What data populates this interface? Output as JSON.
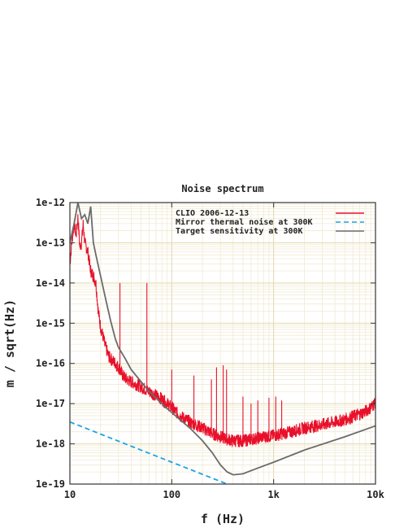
{
  "chart_data": {
    "type": "line",
    "title": "Noise spectrum",
    "xlabel": "f (Hz)",
    "ylabel": "m / sqrt(Hz)",
    "x_scale": "log",
    "y_scale": "log",
    "xlim": [
      10,
      10000
    ],
    "ylim": [
      1e-19,
      1e-12
    ],
    "x_ticks": [
      {
        "value": 10,
        "label": "10"
      },
      {
        "value": 100,
        "label": "100"
      },
      {
        "value": 1000,
        "label": "1k"
      },
      {
        "value": 10000,
        "label": "10k"
      }
    ],
    "y_ticks": [
      {
        "value": 1e-12,
        "label": "1e-12"
      },
      {
        "value": 1e-13,
        "label": "1e-13"
      },
      {
        "value": 1e-14,
        "label": "1e-14"
      },
      {
        "value": 1e-15,
        "label": "1e-15"
      },
      {
        "value": 1e-16,
        "label": "1e-16"
      },
      {
        "value": 1e-17,
        "label": "1e-17"
      },
      {
        "value": 1e-18,
        "label": "1e-18"
      },
      {
        "value": 1e-19,
        "label": "1e-19"
      }
    ],
    "grid": true,
    "legend_position": "top-right",
    "series": [
      {
        "name": "CLIO 2006-12-13",
        "color": "#e8102a",
        "style": "solid",
        "points": [
          [
            10,
            3e-14
          ],
          [
            10.5,
            1.2e-13
          ],
          [
            11,
            3e-13
          ],
          [
            11.5,
            1.5e-13
          ],
          [
            12,
            4.5e-13
          ],
          [
            12.5,
            8e-14
          ],
          [
            13,
            1e-13
          ],
          [
            13.5,
            3e-13
          ],
          [
            14,
            1e-13
          ],
          [
            15,
            6e-14
          ],
          [
            16,
            2e-14
          ],
          [
            17,
            1.5e-14
          ],
          [
            18,
            1e-14
          ],
          [
            19,
            2e-15
          ],
          [
            20,
            8e-16
          ],
          [
            21,
            5e-16
          ],
          [
            22,
            3e-16
          ],
          [
            24,
            1.5e-16
          ],
          [
            26,
            1.2e-16
          ],
          [
            28,
            1e-16
          ],
          [
            30,
            8e-17
          ],
          [
            33,
            5e-17
          ],
          [
            36,
            4e-17
          ],
          [
            40,
            3.5e-17
          ],
          [
            45,
            3e-17
          ],
          [
            50,
            2.6e-17
          ],
          [
            60,
            2e-17
          ],
          [
            70,
            1.6e-17
          ],
          [
            80,
            1.3e-17
          ],
          [
            100,
            8e-18
          ],
          [
            120,
            5e-18
          ],
          [
            150,
            3.5e-18
          ],
          [
            200,
            2.5e-18
          ],
          [
            250,
            1.8e-18
          ],
          [
            300,
            1.5e-18
          ],
          [
            350,
            1.3e-18
          ],
          [
            400,
            1.2e-18
          ],
          [
            500,
            1.2e-18
          ],
          [
            600,
            1.3e-18
          ],
          [
            700,
            1.4e-18
          ],
          [
            800,
            1.5e-18
          ],
          [
            1000,
            1.6e-18
          ],
          [
            1500,
            2e-18
          ],
          [
            2000,
            2.5e-18
          ],
          [
            3000,
            3e-18
          ],
          [
            4000,
            3.5e-18
          ],
          [
            5000,
            4e-18
          ],
          [
            6000,
            4.8e-18
          ],
          [
            7000,
            5.5e-18
          ],
          [
            8000,
            6.5e-18
          ],
          [
            9000,
            8e-18
          ],
          [
            10000,
            1.1e-17
          ]
        ],
        "peaks": [
          [
            31,
            1e-14
          ],
          [
            57,
            1e-14
          ],
          [
            100,
            7e-17
          ],
          [
            165,
            5e-17
          ],
          [
            245,
            4e-17
          ],
          [
            275,
            8e-17
          ],
          [
            320,
            9e-17
          ],
          [
            345,
            7e-17
          ],
          [
            500,
            1.5e-17
          ],
          [
            600,
            1e-17
          ],
          [
            700,
            1.2e-17
          ],
          [
            900,
            1.4e-17
          ],
          [
            1050,
            1.5e-17
          ],
          [
            1200,
            1.2e-17
          ]
        ]
      },
      {
        "name": "Mirror thermal noise at 300K",
        "color": "#1aa3e6",
        "style": "dashed",
        "points": [
          [
            10,
            3.5e-18
          ],
          [
            100,
            3.5e-19
          ],
          [
            400,
            8.75e-20
          ]
        ]
      },
      {
        "name": "Target sensitivity at 300K",
        "color": "#6b6b6b",
        "style": "solid",
        "points": [
          [
            10,
            1e-13
          ],
          [
            11,
            3e-13
          ],
          [
            12,
            1e-12
          ],
          [
            13,
            4e-13
          ],
          [
            14,
            5e-13
          ],
          [
            15,
            3e-13
          ],
          [
            16,
            8e-13
          ],
          [
            17,
            1e-13
          ],
          [
            18,
            5e-14
          ],
          [
            20,
            1.5e-14
          ],
          [
            22,
            5e-15
          ],
          [
            25,
            1.2e-15
          ],
          [
            28,
            4e-16
          ],
          [
            30,
            2.5e-16
          ],
          [
            35,
            1.3e-16
          ],
          [
            40,
            7e-17
          ],
          [
            50,
            3.5e-17
          ],
          [
            60,
            2e-17
          ],
          [
            80,
            1e-17
          ],
          [
            100,
            6e-18
          ],
          [
            150,
            2.5e-18
          ],
          [
            200,
            1.2e-18
          ],
          [
            250,
            6e-19
          ],
          [
            300,
            3e-19
          ],
          [
            350,
            2e-19
          ],
          [
            400,
            1.7e-19
          ],
          [
            500,
            1.8e-19
          ],
          [
            700,
            2.5e-19
          ],
          [
            1000,
            3.5e-19
          ],
          [
            2000,
            7e-19
          ],
          [
            5000,
            1.5e-18
          ],
          [
            10000,
            2.8e-18
          ]
        ]
      }
    ]
  }
}
